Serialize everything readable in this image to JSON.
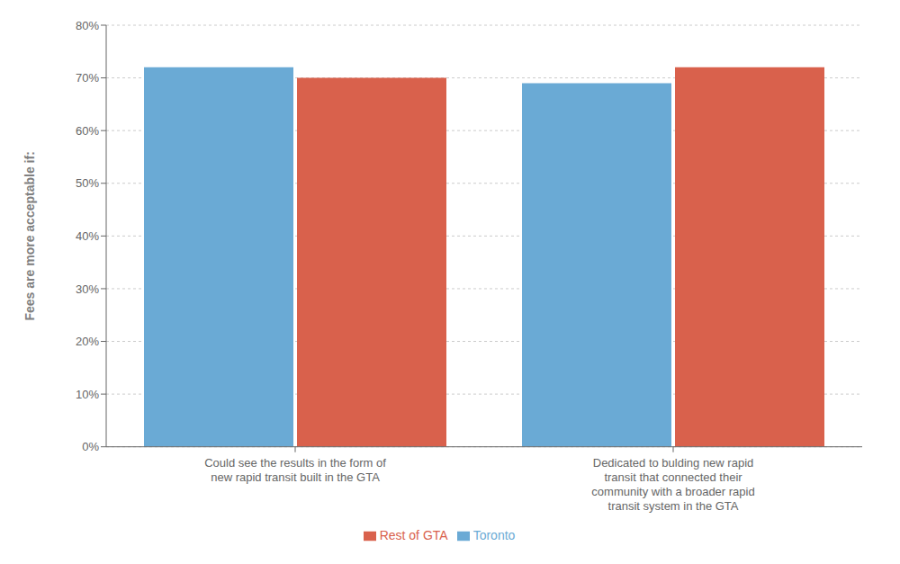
{
  "chart_data": {
    "type": "bar",
    "categories": [
      "Could see the results in the form of\nnew rapid transit built in the GTA",
      "Dedicated to bulding new rapid\ntransit that connected their\ncommunity with a broader rapid\ntransit system in the GTA"
    ],
    "series": [
      {
        "name": "Toronto",
        "color": "#6aaad5",
        "values": [
          0.72,
          0.69
        ]
      },
      {
        "name": "Rest of GTA",
        "color": "#d9614c",
        "values": [
          0.7,
          0.72
        ]
      }
    ],
    "ylabel": "Fees are more acceptable if:",
    "ylim": [
      0,
      0.8
    ],
    "yticks": [
      {
        "value": 0.0,
        "label": "0%"
      },
      {
        "value": 0.1,
        "label": "10%"
      },
      {
        "value": 0.2,
        "label": "20%"
      },
      {
        "value": 0.3,
        "label": "30%"
      },
      {
        "value": 0.4,
        "label": "40%"
      },
      {
        "value": 0.5,
        "label": "50%"
      },
      {
        "value": 0.6,
        "label": "60%"
      },
      {
        "value": 0.7,
        "label": "70%"
      },
      {
        "value": 0.8,
        "label": "80%"
      }
    ],
    "grid": true,
    "legend": "bottom"
  }
}
